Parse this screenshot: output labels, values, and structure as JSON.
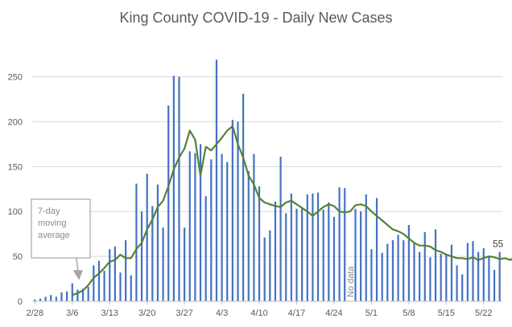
{
  "chart_data": {
    "type": "bar",
    "title": "King County COVID-19 - Daily New Cases",
    "xlabel": "",
    "ylabel": "",
    "ylim": [
      0,
      280
    ],
    "yticks": [
      0,
      50,
      100,
      150,
      200,
      250
    ],
    "grid": true,
    "x_tick_labels": [
      "2/28",
      "3/6",
      "3/13",
      "3/20",
      "3/27",
      "4/3",
      "4/10",
      "4/17",
      "4/24",
      "5/1",
      "5/8",
      "5/15",
      "5/22"
    ],
    "x_tick_every_days": 7,
    "start_date": "2/28",
    "series": [
      {
        "type": "bar",
        "color": "#4472c4",
        "values": [
          2,
          3,
          5,
          7,
          5,
          10,
          11,
          20,
          13,
          14,
          16,
          40,
          45,
          34,
          58,
          61,
          32,
          68,
          29,
          131,
          100,
          142,
          106,
          130,
          82,
          218,
          251,
          250,
          82,
          167,
          165,
          175,
          117,
          158,
          269,
          164,
          155,
          202,
          200,
          231,
          145,
          164,
          128,
          71,
          79,
          111,
          161,
          98,
          120,
          103,
          103,
          119,
          120,
          121,
          102,
          110,
          94,
          127,
          126,
          0,
          103,
          100,
          119,
          58,
          115,
          54,
          64,
          68,
          74,
          68,
          85,
          66,
          55,
          77,
          49,
          80,
          53,
          52,
          63,
          40,
          30,
          65,
          67,
          55,
          59,
          50,
          35,
          55
        ]
      },
      {
        "type": "line",
        "color": "#548235",
        "start_index": 7,
        "values": [
          7,
          9,
          12,
          18,
          26,
          31,
          37,
          44,
          46,
          52,
          48,
          48,
          58,
          65,
          80,
          91,
          105,
          112,
          128,
          147,
          160,
          170,
          190,
          180,
          140,
          172,
          168,
          175,
          182,
          190,
          195,
          175,
          160,
          140,
          130,
          115,
          110,
          108,
          106,
          105,
          110,
          112,
          108,
          104,
          100,
          95,
          100,
          105,
          108,
          106,
          100,
          99,
          100,
          107,
          108,
          106,
          100,
          95,
          90,
          85,
          80,
          78,
          75,
          70,
          65,
          62,
          62,
          61,
          57,
          55,
          52,
          50,
          48,
          48,
          47,
          49,
          46,
          48,
          50,
          49,
          47,
          48,
          46,
          50
        ]
      }
    ],
    "annotations": {
      "callout": "7-day moving average",
      "callout_lines": [
        "7-day",
        "moving",
        "average"
      ],
      "missing_label": "No data",
      "end_value_label": "55"
    }
  }
}
